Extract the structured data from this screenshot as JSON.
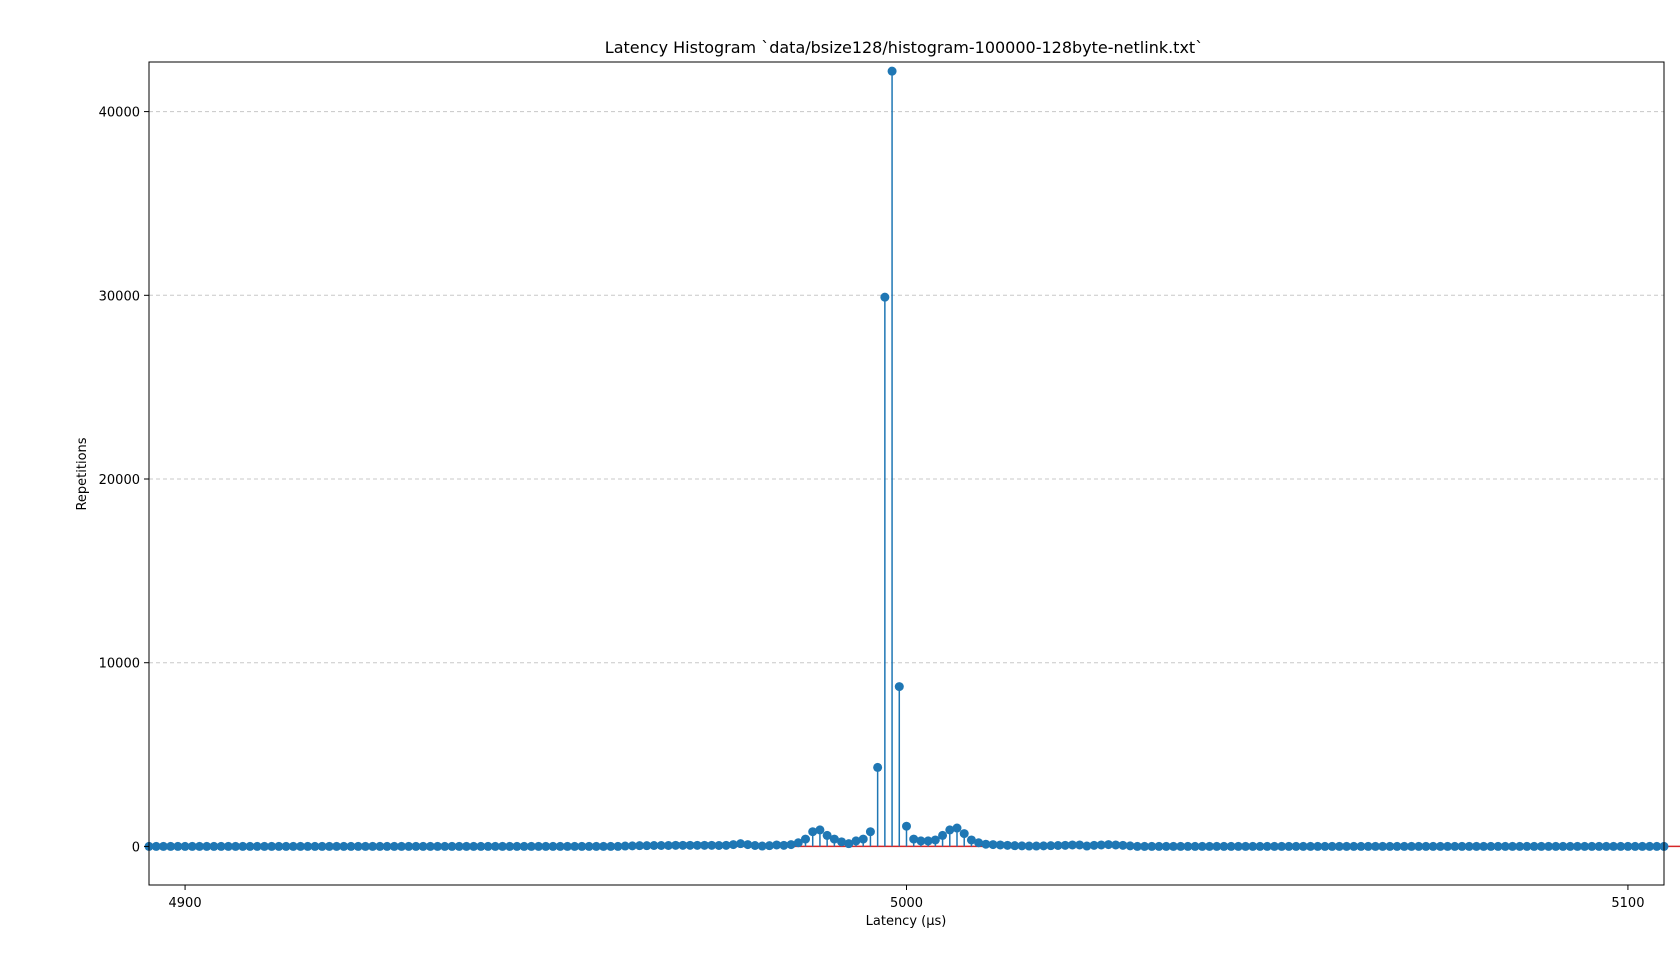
{
  "chart_data": {
    "type": "stem",
    "title": "Latency Histogram `data/bsize128/histogram-100000-128byte-netlink.txt`",
    "xlabel": "Latency (µs)",
    "ylabel": "Repetitions",
    "xlim": [
      4895,
      5105
    ],
    "ylim": [
      -2100,
      42700
    ],
    "xticks": [
      4900,
      5000,
      5100
    ],
    "xtick_labels": [
      "4900",
      "5000",
      "5100"
    ],
    "yticks": [
      0,
      10000,
      20000,
      30000,
      40000
    ],
    "ytick_labels": [
      "0",
      "10000",
      "20000",
      "30000",
      "40000"
    ],
    "grid": "y-dashed",
    "colors": {
      "stem": "#1f77b4",
      "baseline": "#d62728",
      "grid": "#c8c8c8"
    },
    "x_start": 4895,
    "x_step": 1,
    "values": [
      0,
      0,
      0,
      0,
      0,
      0,
      0,
      0,
      0,
      0,
      0,
      0,
      0,
      0,
      0,
      0,
      0,
      0,
      0,
      0,
      0,
      0,
      0,
      0,
      0,
      0,
      0,
      0,
      0,
      0,
      0,
      0,
      0,
      0,
      0,
      0,
      0,
      0,
      0,
      0,
      0,
      0,
      0,
      0,
      0,
      0,
      0,
      0,
      0,
      0,
      0,
      0,
      0,
      0,
      0,
      0,
      0,
      0,
      0,
      0,
      0,
      0,
      0,
      0,
      0,
      0,
      20,
      30,
      40,
      40,
      50,
      50,
      50,
      60,
      60,
      60,
      60,
      60,
      60,
      50,
      60,
      100,
      150,
      100,
      50,
      20,
      40,
      80,
      60,
      100,
      200,
      400,
      800,
      900,
      600,
      400,
      250,
      150,
      300,
      400,
      800,
      4300,
      29900,
      42200,
      8700,
      1100,
      400,
      300,
      300,
      350,
      600,
      900,
      1000,
      700,
      350,
      200,
      120,
      100,
      80,
      60,
      40,
      30,
      20,
      20,
      30,
      40,
      50,
      60,
      80,
      80,
      20,
      60,
      80,
      100,
      80,
      60,
      30,
      0,
      0,
      0,
      0,
      0,
      0,
      0,
      0,
      0,
      0,
      0,
      0,
      0,
      0,
      0,
      0,
      0,
      0,
      0,
      0,
      0,
      0,
      0,
      0,
      0,
      0,
      0,
      0,
      0,
      0,
      0,
      0,
      0,
      0,
      0,
      0,
      0,
      0,
      0,
      0,
      0,
      0,
      0,
      0,
      0,
      0,
      0,
      0,
      0,
      0,
      0,
      0,
      0,
      0,
      0,
      0,
      0,
      0,
      0,
      0,
      0,
      0,
      0,
      0,
      0,
      0,
      0,
      0,
      0,
      0,
      0,
      0,
      0,
      0,
      0,
      0,
      0
    ]
  }
}
